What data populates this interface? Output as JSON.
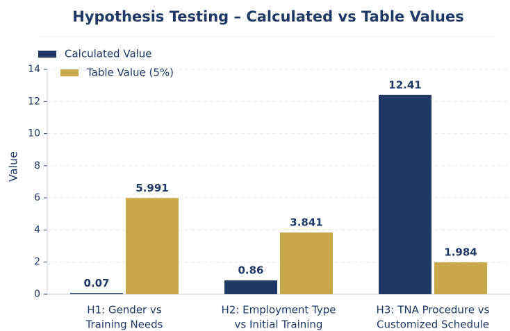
{
  "chart_data": {
    "type": "bar",
    "title": "Hypothesis Testing – Calculated vs Table Values",
    "y_label": "Value",
    "categories": [
      [
        "H1: Gender vs",
        "Training Needs"
      ],
      [
        "H2: Employment Type",
        "vs Initial Training"
      ],
      [
        "H3: TNA Procedure vs",
        "Customized Schedule"
      ]
    ],
    "series": [
      {
        "name": "Calculated Value",
        "color": "#1f3864",
        "values": [
          0.07,
          0.86,
          12.41
        ]
      },
      {
        "name": "Table Value (5%)",
        "color": "#c9a84c",
        "values": [
          5.991,
          3.841,
          1.984
        ]
      }
    ],
    "ylim": [
      0,
      14
    ],
    "yticks": [
      0,
      2,
      4,
      6,
      8,
      10,
      12,
      14
    ],
    "grid": true,
    "legend": "upper left"
  }
}
